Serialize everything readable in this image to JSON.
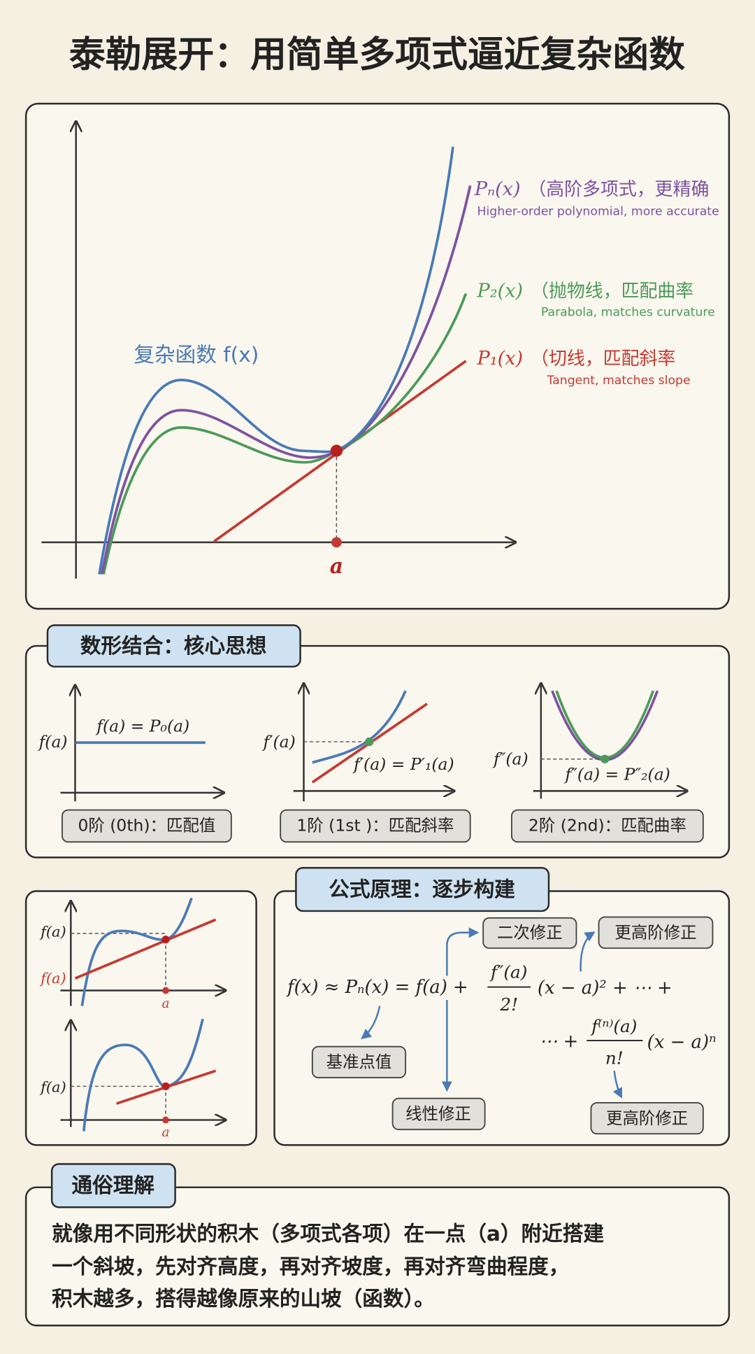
{
  "title": "泰勒展开：用简单多项式逼近复杂函数",
  "main_plot": {
    "function_label": "复杂函数 f(x)",
    "point_label": "a",
    "curves": [
      {
        "name": "Pₙ(x)",
        "label": "（高阶多项式，更精确",
        "label_en": "Higher-order polynomial, more accurate"
      },
      {
        "name": "P₂(x)",
        "label": "（抛物线，匹配曲率",
        "label_en": "Parabola, matches curvature"
      },
      {
        "name": "P₁(x)",
        "label": "（切线，匹配斜率",
        "label_en": "Tangent, matches slope"
      }
    ]
  },
  "core_idea": {
    "title": "数形结合：核心思想",
    "panels": [
      {
        "y_label": "f(a)",
        "equation": "f(a) = P₀(a)",
        "caption": "0阶 (0th)：匹配值"
      },
      {
        "y_label": "f′(a)",
        "equation": "f′(a) = P′₁(a)",
        "caption": "1阶 (1st )：匹配斜率"
      },
      {
        "y_label": "f″(a)",
        "equation": "f″(a) = P″₂(a)",
        "caption": "2阶 (2nd)：匹配曲率"
      }
    ]
  },
  "examples": [
    {
      "y_labels": [
        "f(a)",
        "f(a)"
      ],
      "x_label": "a"
    },
    {
      "y_labels": [
        "f(a)"
      ],
      "x_label": "a"
    }
  ],
  "formula": {
    "title": "公式原理：逐步构建",
    "line1_lhs": "f(x) ≈ Pₙ(x) = f(a) +",
    "frac1_num": "f″(a)",
    "frac1_den": "2!",
    "line1_rest": "(x − a)² + ⋯ +",
    "line2_lead": "⋯ +",
    "frac2_num": "f⁽ⁿ⁾(a)",
    "frac2_den": "n!",
    "line2_rest": "(x − a)ⁿ",
    "annotations": [
      "二次修正",
      "更高阶修正",
      "基准点值",
      "线性修正",
      "更高阶修正"
    ]
  },
  "plain": {
    "title": "通俗理解",
    "lines": [
      "就像用不同形状的积木（多项式各项）在一点（a）附近搭建",
      "一个斜坡，先对齐高度，再对齐坡度，再对齐弯曲程度，",
      "积木越多，搭得越像原来的山坡（函数）。"
    ]
  }
}
